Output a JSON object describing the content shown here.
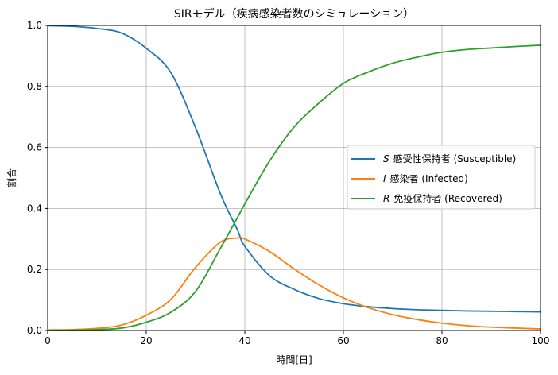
{
  "chart_data": {
    "type": "line",
    "title": "SIRモデル（疾病感染者数のシミュレーション）",
    "xlabel": "時間[日]",
    "ylabel": "割合",
    "xlim": [
      0,
      100
    ],
    "ylim": [
      0,
      1.0
    ],
    "xticks": [
      "0",
      "20",
      "40",
      "60",
      "80",
      "100"
    ],
    "yticks": [
      "0.0",
      "0.2",
      "0.4",
      "0.6",
      "0.8",
      "1.0"
    ],
    "grid": true,
    "legend_position": "center-right",
    "x": [
      0,
      5,
      10,
      15,
      20,
      25,
      30,
      35,
      38.5,
      40,
      45,
      50,
      55,
      60,
      65,
      70,
      75,
      80,
      85,
      90,
      95,
      100
    ],
    "series": [
      {
        "name": "S",
        "label": "感受性保持者 (Susceptible)",
        "color": "#1f77b4",
        "values": [
          0.999,
          0.997,
          0.99,
          0.975,
          0.925,
          0.845,
          0.665,
          0.45,
          0.33,
          0.276,
          0.18,
          0.135,
          0.105,
          0.088,
          0.078,
          0.072,
          0.068,
          0.066,
          0.064,
          0.063,
          0.062,
          0.061
        ]
      },
      {
        "name": "I",
        "label": "感染者 (Infected)",
        "color": "#ff7f0e",
        "values": [
          0.002,
          0.003,
          0.007,
          0.018,
          0.05,
          0.102,
          0.207,
          0.289,
          0.303,
          0.3,
          0.259,
          0.202,
          0.15,
          0.107,
          0.075,
          0.052,
          0.036,
          0.024,
          0.016,
          0.011,
          0.008,
          0.005
        ]
      },
      {
        "name": "R",
        "label": "免疫保持者 (Recovered)",
        "color": "#2ca02c",
        "values": [
          0.0,
          0.001,
          0.003,
          0.008,
          0.027,
          0.06,
          0.128,
          0.268,
          0.37,
          0.415,
          0.555,
          0.667,
          0.745,
          0.81,
          0.847,
          0.876,
          0.896,
          0.912,
          0.921,
          0.926,
          0.931,
          0.935
        ]
      }
    ]
  }
}
